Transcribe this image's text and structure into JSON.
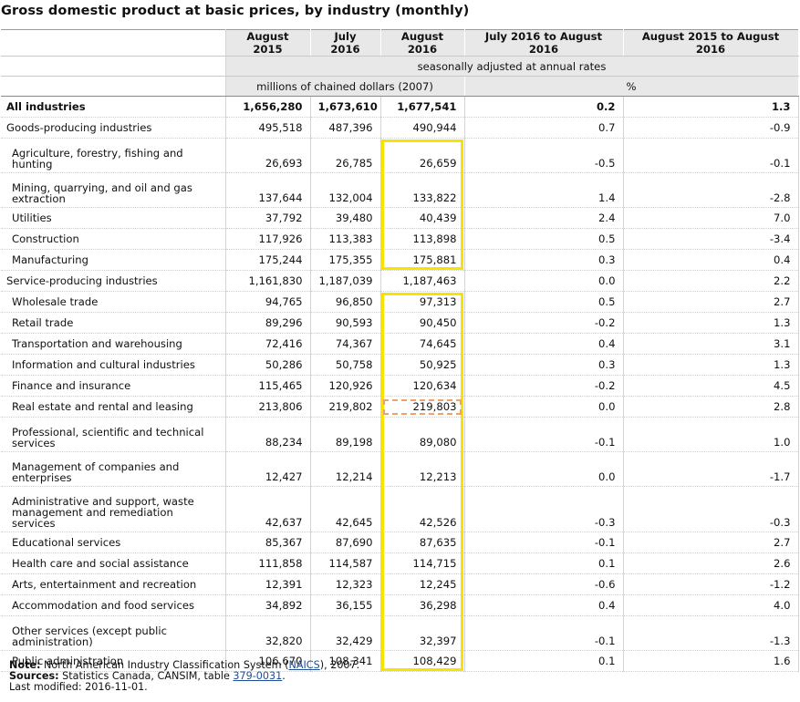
{
  "title": "Gross domestic product at basic prices, by industry (monthly)",
  "headers": [
    "August 2015",
    "July 2016",
    "August 2016",
    "July 2016 to August 2016",
    "August 2015 to August 2016"
  ],
  "subheader_adjusted": "seasonally adjusted at annual rates",
  "unit_left": "millions of chained dollars (2007)",
  "unit_right": "%",
  "rows": [
    {
      "label": "All industries",
      "v": [
        "1,656,280",
        "1,673,610",
        "1,677,541",
        "0.2",
        "1.3"
      ],
      "bold": true,
      "h": 1,
      "sub": false
    },
    {
      "label": "Goods-producing industries",
      "v": [
        "495,518",
        "487,396",
        "490,944",
        "0.7",
        "-0.9"
      ],
      "bold": false,
      "h": 1,
      "sub": false
    },
    {
      "label": "Agriculture, forestry, fishing and hunting",
      "v": [
        "26,693",
        "26,785",
        "26,659",
        "-0.5",
        "-0.1"
      ],
      "bold": false,
      "h": 2,
      "sub": true
    },
    {
      "label": "Mining, quarrying, and oil and gas extraction",
      "v": [
        "137,644",
        "132,004",
        "133,822",
        "1.4",
        "-2.8"
      ],
      "bold": false,
      "h": 2,
      "sub": true
    },
    {
      "label": "Utilities",
      "v": [
        "37,792",
        "39,480",
        "40,439",
        "2.4",
        "7.0"
      ],
      "bold": false,
      "h": 1,
      "sub": true
    },
    {
      "label": "Construction",
      "v": [
        "117,926",
        "113,383",
        "113,898",
        "0.5",
        "-3.4"
      ],
      "bold": false,
      "h": 1,
      "sub": true
    },
    {
      "label": "Manufacturing",
      "v": [
        "175,244",
        "175,355",
        "175,881",
        "0.3",
        "0.4"
      ],
      "bold": false,
      "h": 1,
      "sub": true
    },
    {
      "label": "Service-producing industries",
      "v": [
        "1,161,830",
        "1,187,039",
        "1,187,463",
        "0.0",
        "2.2"
      ],
      "bold": false,
      "h": 1,
      "sub": false
    },
    {
      "label": "Wholesale trade",
      "v": [
        "94,765",
        "96,850",
        "97,313",
        "0.5",
        "2.7"
      ],
      "bold": false,
      "h": 1,
      "sub": true
    },
    {
      "label": "Retail trade",
      "v": [
        "89,296",
        "90,593",
        "90,450",
        "-0.2",
        "1.3"
      ],
      "bold": false,
      "h": 1,
      "sub": true
    },
    {
      "label": "Transportation and warehousing",
      "v": [
        "72,416",
        "74,367",
        "74,645",
        "0.4",
        "3.1"
      ],
      "bold": false,
      "h": 1,
      "sub": true
    },
    {
      "label": "Information and cultural industries",
      "v": [
        "50,286",
        "50,758",
        "50,925",
        "0.3",
        "1.3"
      ],
      "bold": false,
      "h": 1,
      "sub": true
    },
    {
      "label": "Finance and insurance",
      "v": [
        "115,465",
        "120,926",
        "120,634",
        "-0.2",
        "4.5"
      ],
      "bold": false,
      "h": 1,
      "sub": true
    },
    {
      "label": "Real estate and rental and leasing",
      "v": [
        "213,806",
        "219,802",
        "219,803",
        "0.0",
        "2.8"
      ],
      "bold": false,
      "h": 1,
      "sub": true
    },
    {
      "label": "Professional, scientific and technical services",
      "v": [
        "88,234",
        "89,198",
        "89,080",
        "-0.1",
        "1.0"
      ],
      "bold": false,
      "h": 2,
      "sub": true
    },
    {
      "label": "Management of companies and enterprises",
      "v": [
        "12,427",
        "12,214",
        "12,213",
        "0.0",
        "-1.7"
      ],
      "bold": false,
      "h": 2,
      "sub": true
    },
    {
      "label": "Administrative and support, waste management and remediation services",
      "v": [
        "42,637",
        "42,645",
        "42,526",
        "-0.3",
        "-0.3"
      ],
      "bold": false,
      "h": 3,
      "sub": true
    },
    {
      "label": "Educational services",
      "v": [
        "85,367",
        "87,690",
        "87,635",
        "-0.1",
        "2.7"
      ],
      "bold": false,
      "h": 1,
      "sub": true
    },
    {
      "label": "Health care and social assistance",
      "v": [
        "111,858",
        "114,587",
        "114,715",
        "0.1",
        "2.6"
      ],
      "bold": false,
      "h": 1,
      "sub": true
    },
    {
      "label": "Arts, entertainment and recreation",
      "v": [
        "12,391",
        "12,323",
        "12,245",
        "-0.6",
        "-1.2"
      ],
      "bold": false,
      "h": 1,
      "sub": true
    },
    {
      "label": "Accommodation and food services",
      "v": [
        "34,892",
        "36,155",
        "36,298",
        "0.4",
        "4.0"
      ],
      "bold": false,
      "h": 1,
      "sub": true
    },
    {
      "label": "Other services (except public administration)",
      "v": [
        "32,820",
        "32,429",
        "32,397",
        "-0.1",
        "-1.3"
      ],
      "bold": false,
      "h": 2,
      "sub": true
    },
    {
      "label": "Public administration",
      "v": [
        "106,670",
        "108,341",
        "108,429",
        "0.1",
        "1.6"
      ],
      "bold": false,
      "h": 1,
      "sub": true
    }
  ],
  "notes": {
    "note_label": "Note:",
    "note_pre": "North American Industry Classification System (",
    "note_link": "NAICS",
    "note_post": "), 2007.",
    "sources_label": "Sources:",
    "sources_pre": "Statistics Canada, CANSIM, table",
    "sources_link": "379-0031",
    "sources_post": ".",
    "modified": "Last modified: 2016-11-01."
  },
  "highlight_colors": {
    "yellow": "#f6e400",
    "orange": "#f0a06a"
  }
}
